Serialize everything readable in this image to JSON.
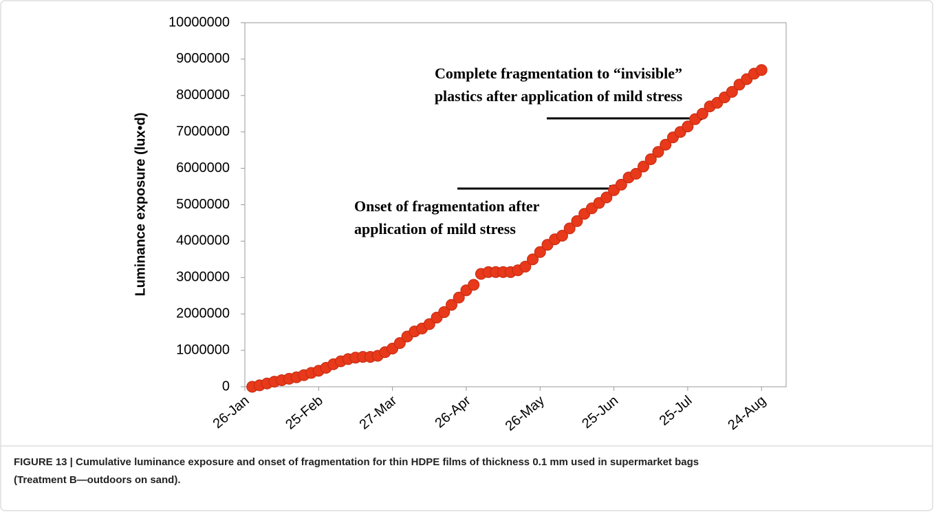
{
  "chart_data": {
    "type": "scatter",
    "y_label": "Luminance exposure (lux•d)",
    "x": [
      "29-Jan",
      "1-Feb",
      "4-Feb",
      "7-Feb",
      "10-Feb",
      "13-Feb",
      "16-Feb",
      "19-Feb",
      "22-Feb",
      "25-Feb",
      "28-Feb",
      "3-Mar",
      "6-Mar",
      "9-Mar",
      "12-Mar",
      "15-Mar",
      "18-Mar",
      "21-Mar",
      "24-Mar",
      "27-Mar",
      "30-Mar",
      "2-Apr",
      "5-Apr",
      "8-Apr",
      "11-Apr",
      "14-Apr",
      "17-Apr",
      "20-Apr",
      "23-Apr",
      "26-Apr",
      "29-Apr",
      "2-May",
      "5-May",
      "8-May",
      "11-May",
      "14-May",
      "17-May",
      "20-May",
      "23-May",
      "26-May",
      "29-May",
      "1-Jun",
      "4-Jun",
      "7-Jun",
      "10-Jun",
      "13-Jun",
      "16-Jun",
      "19-Jun",
      "22-Jun",
      "25-Jun",
      "28-Jun",
      "1-Jul",
      "4-Jul",
      "7-Jul",
      "10-Jul",
      "13-Jul",
      "16-Jul",
      "19-Jul",
      "22-Jul",
      "25-Jul",
      "28-Jul",
      "31-Jul",
      "3-Aug",
      "6-Aug",
      "9-Aug",
      "12-Aug",
      "15-Aug",
      "18-Aug",
      "21-Aug",
      "24-Aug"
    ],
    "series": [
      {
        "color": "#e8391b",
        "values": [
          0,
          40000,
          90000,
          140000,
          180000,
          220000,
          260000,
          320000,
          380000,
          440000,
          520000,
          620000,
          700000,
          760000,
          800000,
          820000,
          820000,
          850000,
          950000,
          1050000,
          1200000,
          1380000,
          1520000,
          1600000,
          1720000,
          1900000,
          2050000,
          2250000,
          2450000,
          2650000,
          2800000,
          3100000,
          3150000,
          3150000,
          3150000,
          3150000,
          3200000,
          3300000,
          3500000,
          3700000,
          3900000,
          4050000,
          4150000,
          4350000,
          4550000,
          4750000,
          4900000,
          5050000,
          5200000,
          5400000,
          5550000,
          5750000,
          5850000,
          6050000,
          6250000,
          6450000,
          6650000,
          6850000,
          7000000,
          7150000,
          7350000,
          7500000,
          7700000,
          7800000,
          7950000,
          8100000,
          8300000,
          8450000,
          8600000,
          8700000
        ]
      }
    ],
    "xlim": [
      "26-Jan",
      "3-Sep"
    ],
    "xticks": [
      "26-Jan",
      "25-Feb",
      "27-Mar",
      "26-Apr",
      "26-May",
      "25-Jun",
      "25-Jul",
      "24-Aug"
    ],
    "ylim": [
      0,
      10000000
    ],
    "yticks": [
      0,
      1000000,
      2000000,
      3000000,
      4000000,
      5000000,
      6000000,
      7000000,
      8000000,
      9000000,
      10000000
    ],
    "annotations": [
      {
        "lines": [
          "Complete fragmentation to “invisible”",
          "plastics after application of mild stress"
        ]
      },
      {
        "lines": [
          "Onset of fragmentation after",
          "application of mild stress"
        ]
      }
    ]
  },
  "caption": [
    "FIGURE 13 | Cumulative luminance exposure and onset of fragmentation for thin HDPE films of thickness 0.1 mm used in supermarket bags",
    "(Treatment B—outdoors on sand)."
  ]
}
